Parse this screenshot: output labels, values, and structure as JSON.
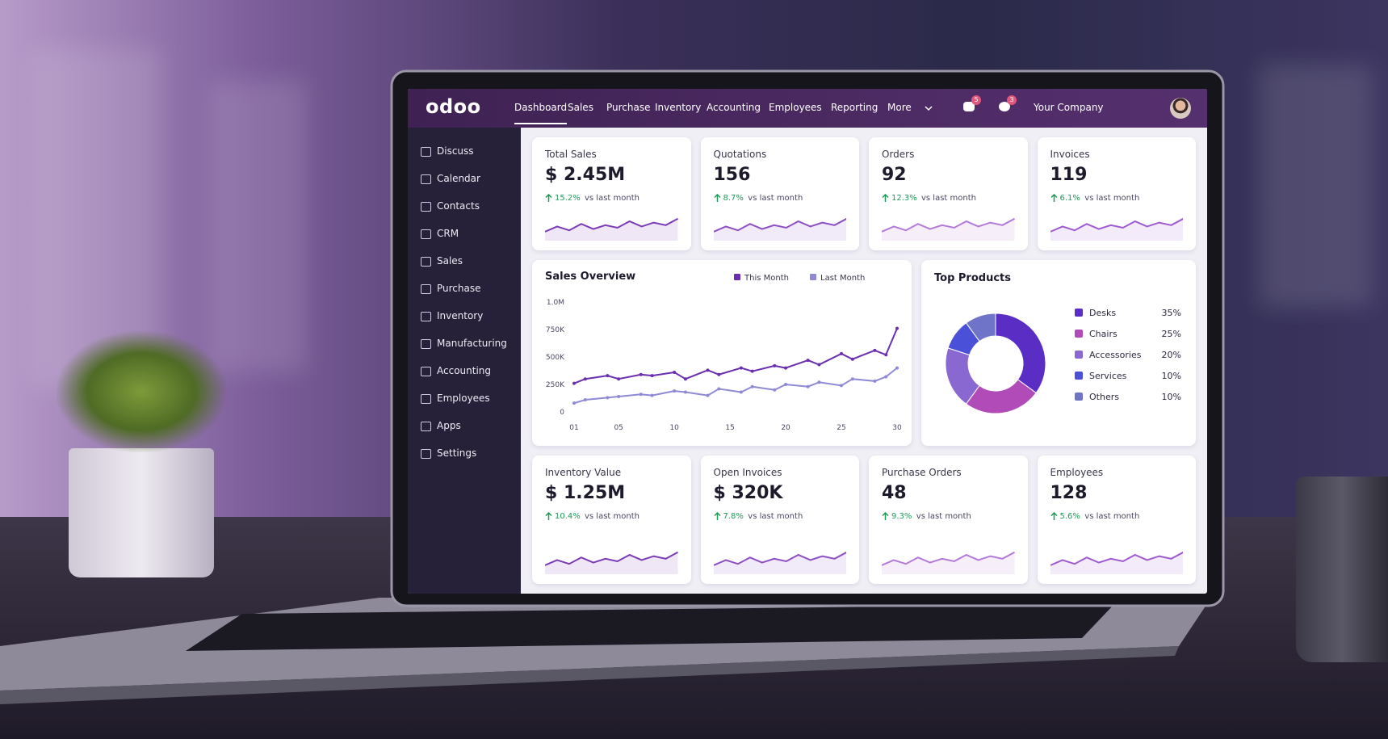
{
  "brand": "odoo",
  "nav": [
    "Dashboard",
    "Sales",
    "Purchase",
    "Inventory",
    "Accounting",
    "Employees",
    "Reporting",
    "More"
  ],
  "badges": [
    5,
    3
  ],
  "company": "Your Company",
  "sidebar": [
    "Discuss",
    "Calendar",
    "Contacts",
    "CRM",
    "Sales",
    "Purchase",
    "Inventory",
    "Manufacturing",
    "Accounting",
    "Employees",
    "Apps",
    "Settings"
  ],
  "kpi_note": "vs last month",
  "kpis": [
    {
      "title": "Total Sales",
      "value": "$ 2.45M",
      "change": "15.2%"
    },
    {
      "title": "Quotations",
      "value": "156",
      "change": "8.7%"
    },
    {
      "title": "Orders",
      "value": "92",
      "change": "12.3%"
    },
    {
      "title": "Invoices",
      "value": "119",
      "change": "6.1%"
    }
  ],
  "bottom_kpis": [
    {
      "title": "Inventory Value",
      "value": "$ 1.25M",
      "change": "10.4%"
    },
    {
      "title": "Open Invoices",
      "value": "$ 320K",
      "change": "7.8%"
    },
    {
      "title": "Purchase Orders",
      "value": "48",
      "change": "9.3%"
    },
    {
      "title": "Employees",
      "value": "128",
      "change": "5.6%"
    }
  ],
  "sales_overview": {
    "type": "line",
    "title": "Sales Overview",
    "x": [
      1,
      2,
      4,
      5,
      7,
      8,
      10,
      11,
      13,
      14,
      16,
      17,
      19,
      20,
      22,
      23,
      25,
      26,
      28,
      29,
      30
    ],
    "series": [
      {
        "name": "This Month",
        "color": "#6a2fb0",
        "values": [
          260000,
          300000,
          330000,
          300000,
          340000,
          330000,
          360000,
          300000,
          380000,
          340000,
          400000,
          370000,
          420000,
          400000,
          470000,
          430000,
          530000,
          480000,
          560000,
          520000,
          760000
        ]
      },
      {
        "name": "Last Month",
        "color": "#8f8ad6",
        "values": [
          80000,
          110000,
          130000,
          140000,
          160000,
          150000,
          190000,
          180000,
          150000,
          210000,
          180000,
          230000,
          200000,
          250000,
          230000,
          270000,
          240000,
          300000,
          280000,
          320000,
          400000
        ]
      }
    ],
    "xlim": [
      1,
      30
    ],
    "ylim": [
      0,
      1000000
    ],
    "xticks": [
      {
        "value": 1,
        "label": "01"
      },
      {
        "value": 5,
        "label": "05"
      },
      10,
      15,
      20,
      25,
      30
    ],
    "yticks": [
      0,
      {
        "value": 250000,
        "label": "250K"
      },
      {
        "value": 500000,
        "label": "500K"
      },
      {
        "value": 750000,
        "label": "750K"
      },
      {
        "value": 1000000,
        "label": "1.0M"
      }
    ]
  },
  "top_products": {
    "type": "pie",
    "title": "Top Products",
    "categories": [
      "Desks",
      "Chairs",
      "Accessories",
      "Services",
      "Others"
    ],
    "values": [
      35,
      25,
      20,
      10,
      10
    ],
    "value_labels": [
      "35%",
      "25%",
      "20%",
      "10%",
      "10%"
    ],
    "colors": [
      "#5a2dc4",
      "#b04bb8",
      "#8a68d2",
      "#4a50d8",
      "#6f74c8"
    ]
  }
}
